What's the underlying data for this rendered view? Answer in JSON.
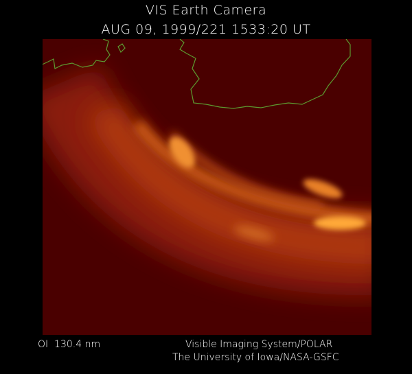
{
  "header": {
    "title": "VIS Earth Camera",
    "timestamp": "AUG 09, 1999/221 1533:20 UT"
  },
  "footer": {
    "wavelength": "OI  130.4 nm",
    "instrument": "Visible Imaging System/POLAR",
    "credit": "The University of Iowa/NASA-GSFC"
  }
}
